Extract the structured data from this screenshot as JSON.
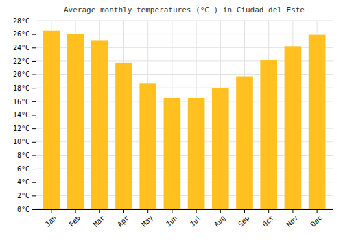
{
  "chart_data": {
    "type": "bar",
    "title": "Average monthly temperatures (°C ) in Ciudad del Este",
    "categories": [
      "Jan",
      "Feb",
      "Mar",
      "Apr",
      "May",
      "Jun",
      "Jul",
      "Aug",
      "Sep",
      "Oct",
      "Nov",
      "Dec"
    ],
    "values": [
      26.5,
      26.0,
      25.0,
      21.7,
      18.7,
      16.5,
      16.5,
      18.0,
      19.7,
      22.2,
      24.2,
      25.9
    ],
    "color": "#FFC020",
    "ylim": [
      0,
      28
    ],
    "yticks": [
      {
        "value": 0,
        "label": "0°C"
      },
      {
        "value": 2,
        "label": "2°C"
      },
      {
        "value": 4,
        "label": "4°C"
      },
      {
        "value": 6,
        "label": "6°C"
      },
      {
        "value": 8,
        "label": "8°C"
      },
      {
        "value": 10,
        "label": "10°C"
      },
      {
        "value": 12,
        "label": "12°C"
      },
      {
        "value": 14,
        "label": "14°C"
      },
      {
        "value": 16,
        "label": "16°C"
      },
      {
        "value": 18,
        "label": "18°C"
      },
      {
        "value": 20,
        "label": "20°C"
      },
      {
        "value": 22,
        "label": "22°C"
      },
      {
        "value": 24,
        "label": "24°C"
      },
      {
        "value": 26,
        "label": "26°C"
      },
      {
        "value": 28,
        "label": "28°C"
      }
    ],
    "grid": true
  }
}
